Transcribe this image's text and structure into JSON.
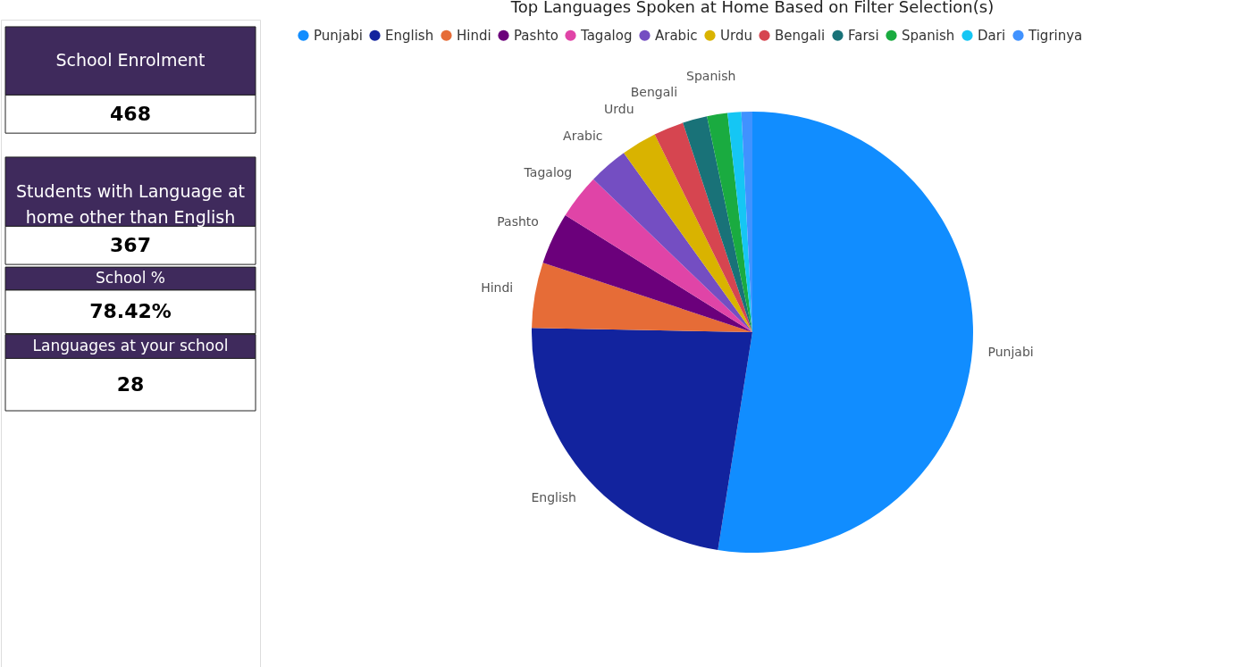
{
  "chart_data": [
    {
      "type": "other",
      "annotations": [
        "School Enrolment",
        "468",
        "Students with Language at home other than English",
        "367",
        "School %",
        "78.42%",
        "Languages at your school",
        "28"
      ]
    },
    {
      "type": "pie",
      "title": "Top Languages Spoken at Home Based on Filter Selection(s)",
      "categories": [
        "Punjabi",
        "English",
        "Hindi",
        "Pashto",
        "Tagalog",
        "Arabic",
        "Urdu",
        "Bengali",
        "Farsi",
        "Spanish",
        "Dari",
        "Tigrinya"
      ],
      "values": [
        52.5,
        22.8,
        4.8,
        3.8,
        3.3,
        2.9,
        2.6,
        2.2,
        1.8,
        1.5,
        1.0,
        0.8
      ],
      "colors": [
        "#118dff",
        "#12239e",
        "#e66c37",
        "#6b007b",
        "#e044a7",
        "#744ec2",
        "#d9b300",
        "#d64550",
        "#197278",
        "#1aab40",
        "#15c6f4",
        "#4092ff"
      ],
      "legend": "top left",
      "annotations": [
        {
          "text": "Punjabi",
          "x": "Punjabi"
        },
        {
          "text": "English",
          "x": "English"
        },
        {
          "text": "Hindi",
          "x": "Hindi"
        },
        {
          "text": "Pashto",
          "x": "Pashto"
        },
        {
          "text": "Tagalog",
          "x": "Tagalog"
        },
        {
          "text": "Arabic",
          "x": "Arabic"
        },
        {
          "text": "Urdu",
          "x": "Urdu"
        },
        {
          "text": "Bengali",
          "x": "Bengali"
        },
        {
          "text": "Spanish",
          "x": "Spanish"
        }
      ]
    }
  ]
}
